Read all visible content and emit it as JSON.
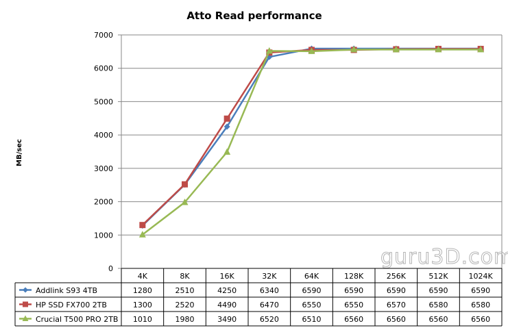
{
  "chart_data": {
    "type": "line",
    "title": "Atto Read performance",
    "ylabel": "MB/sec",
    "xlabel": "",
    "ylim": [
      0,
      7000
    ],
    "yticks": [
      0,
      1000,
      2000,
      3000,
      4000,
      5000,
      6000,
      7000
    ],
    "grid": true,
    "legend": "table-below",
    "categories": [
      "4K",
      "8K",
      "16K",
      "32K",
      "64K",
      "128K",
      "256K",
      "512K",
      "1024K"
    ],
    "series": [
      {
        "name": "Addlink S93 4TB",
        "color": "#4a7ebb",
        "marker": "diamond",
        "values": [
          1280,
          2510,
          4250,
          6340,
          6590,
          6590,
          6590,
          6590,
          6590
        ]
      },
      {
        "name": "HP SSD FX700 2TB",
        "color": "#be4b48",
        "marker": "square",
        "values": [
          1300,
          2520,
          4490,
          6470,
          6550,
          6550,
          6570,
          6580,
          6580
        ]
      },
      {
        "name": "Crucial T500 PRO 2TB",
        "color": "#98b954",
        "marker": "triangle",
        "values": [
          1010,
          1980,
          3490,
          6520,
          6510,
          6560,
          6560,
          6560,
          6560
        ]
      }
    ]
  },
  "watermark": "guru3D.com"
}
